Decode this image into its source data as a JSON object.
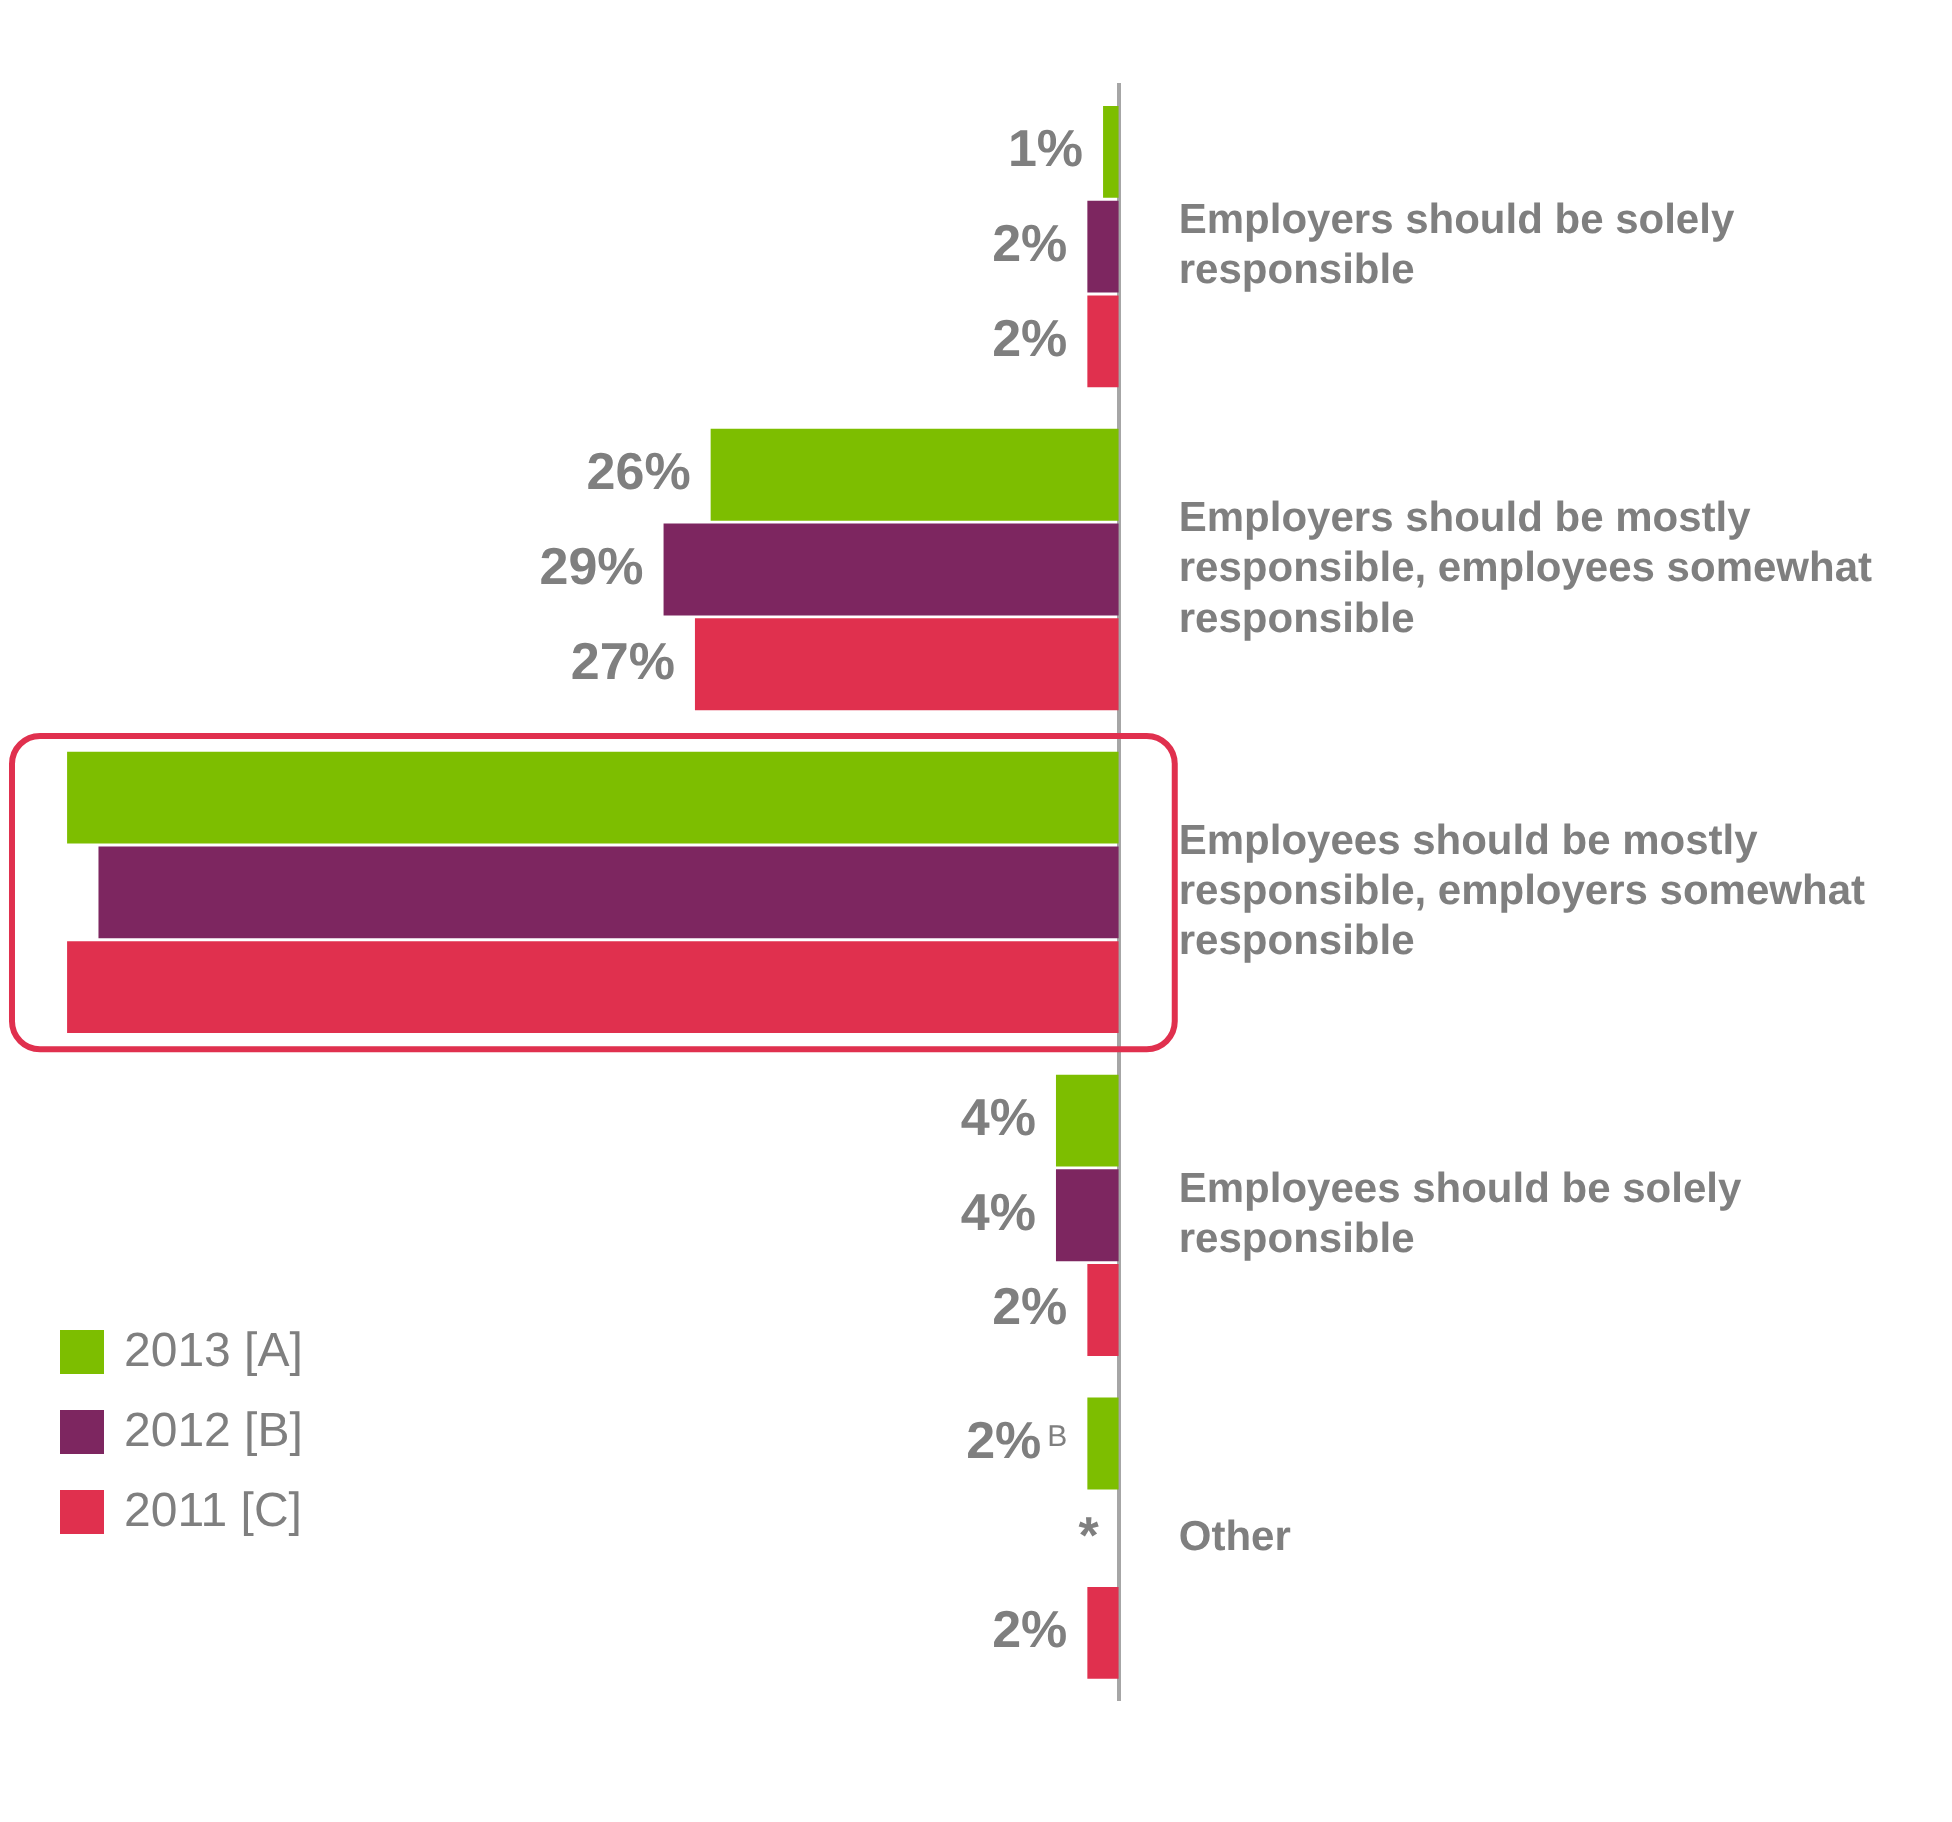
{
  "chart_data": {
    "type": "bar",
    "orientation": "horizontal",
    "categories": [
      "Employers should be solely responsible",
      "Employers should be mostly responsible, employees somewhat responsible",
      "Employees should be mostly responsible, employers somewhat responsible",
      "Employees should be solely responsible",
      "Other"
    ],
    "series": [
      {
        "name": "2013 [A]",
        "color": "#7dbe00",
        "values": [
          1,
          26,
          67,
          4,
          2
        ],
        "value_labels": [
          "1%",
          "26%",
          null,
          "4%",
          "2%$^{B}$"
        ]
      },
      {
        "name": "2012 [B]",
        "color": "#7d2660",
        "values": [
          2,
          29,
          65,
          4,
          null
        ],
        "value_labels": [
          "2%",
          "29%",
          null,
          "4%",
          "*"
        ]
      },
      {
        "name": "2011 [C]",
        "color": "#e0304e",
        "values": [
          2,
          27,
          67,
          2,
          2
        ],
        "value_labels": [
          "2%",
          "27%",
          null,
          "2%",
          "2%"
        ]
      }
    ],
    "tick_labels": "y",
    "legend": "bottom left"
  }
}
